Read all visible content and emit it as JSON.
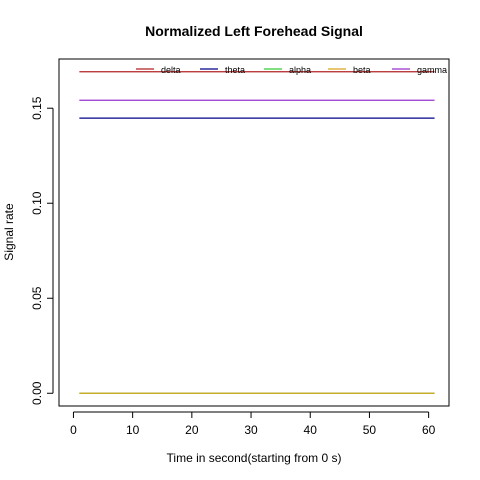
{
  "chart_data": {
    "type": "line",
    "title": "Normalized Left Forehead Signal",
    "xlabel": "Time in second(starting from 0 s)",
    "ylabel": "Signal rate",
    "xlim": [
      -2.44,
      63.44
    ],
    "ylim": [
      -0.0067,
      0.1759
    ],
    "x_ticks": [
      0,
      10,
      20,
      30,
      40,
      50,
      60
    ],
    "x_tick_labels": [
      "0",
      "10",
      "20",
      "30",
      "40",
      "50",
      "60"
    ],
    "y_ticks": [
      0.0,
      0.05,
      0.1,
      0.15
    ],
    "y_tick_labels": [
      "0.00",
      "0.05",
      "0.10",
      "0.15"
    ],
    "grid": false,
    "legend_position": "top",
    "x_range": [
      1,
      61
    ],
    "series": [
      {
        "name": "delta",
        "color": "#b22222",
        "values": [
          0.1692,
          0.1692
        ]
      },
      {
        "name": "theta",
        "color": "#00008b",
        "values": [
          0.1448,
          0.1448
        ]
      },
      {
        "name": "alpha",
        "color": "#32cd32",
        "values": [
          0.0,
          0.0
        ]
      },
      {
        "name": "beta",
        "color": "#daa520",
        "values": [
          0.0,
          0.0
        ]
      },
      {
        "name": "gamma",
        "color": "#9932cc",
        "values": [
          0.1542,
          0.1542
        ]
      }
    ]
  }
}
